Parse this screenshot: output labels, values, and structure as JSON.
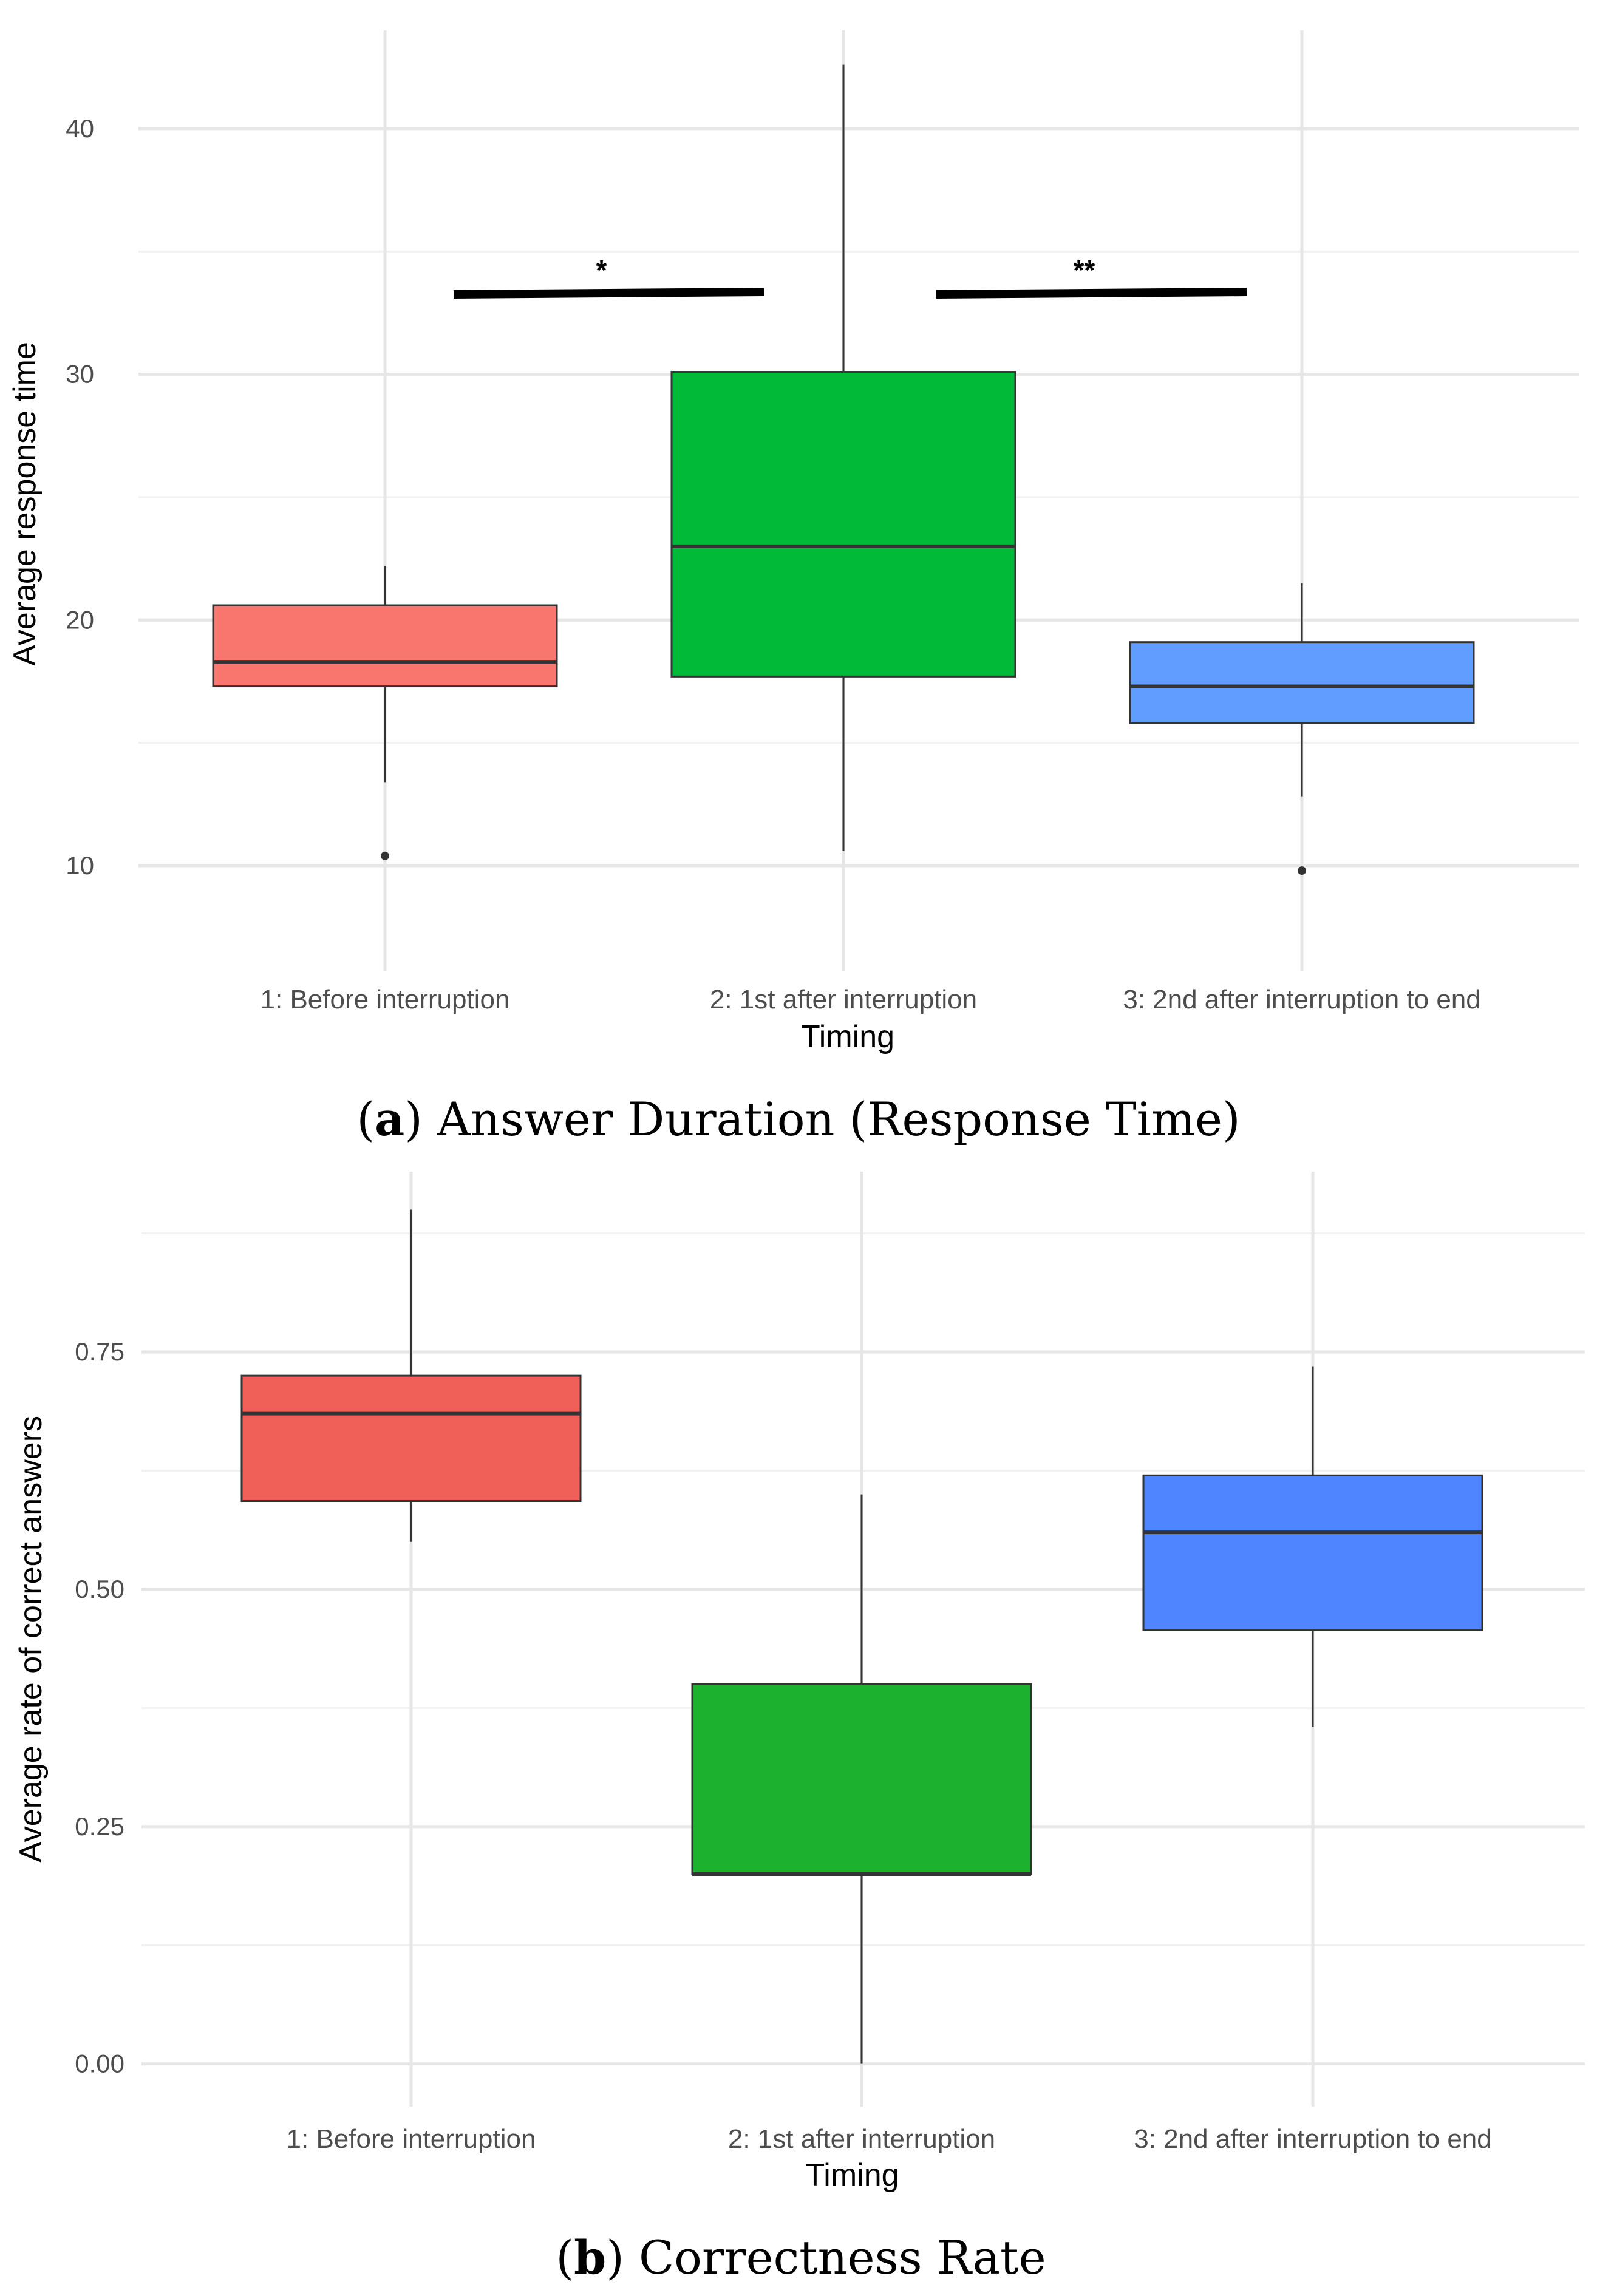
{
  "chart_data": [
    {
      "type": "boxplot",
      "xlabel": "Timing",
      "ylabel": "Average response time",
      "ylim": [
        5.7,
        44
      ],
      "yticks": [
        10,
        20,
        30,
        40
      ],
      "ytick_labels": [
        "10",
        "20",
        "30",
        "40"
      ],
      "grid": true,
      "categories": [
        "1: Before interruption",
        "2: 1st after interruption",
        "3: 2nd after interruption to end"
      ],
      "boxes": [
        {
          "category": "1: Before interruption",
          "fill": "#F8766D",
          "min": 13.4,
          "q1": 17.3,
          "median": 18.3,
          "q3": 20.6,
          "max": 22.2,
          "outliers": [
            10.4
          ]
        },
        {
          "category": "2: 1st after interruption",
          "fill": "#00BA38",
          "min": 10.6,
          "q1": 17.7,
          "median": 23.0,
          "q3": 30.1,
          "max": 42.6,
          "outliers": []
        },
        {
          "category": "3: 2nd after interruption to end",
          "fill": "#619CFF",
          "min": 12.8,
          "q1": 15.8,
          "median": 17.3,
          "q3": 19.1,
          "max": 21.5,
          "outliers": [
            9.8
          ]
        }
      ],
      "significance": [
        {
          "from": 0,
          "to": 1,
          "label": "*",
          "y": 33.3
        },
        {
          "from": 1,
          "to": 2,
          "label": "**",
          "y": 33.3
        }
      ],
      "caption_letter": "a",
      "caption_text": "Answer Duration (Response Time)"
    },
    {
      "type": "boxplot",
      "xlabel": "Timing",
      "ylabel": "Average rate of correct answers",
      "ylim": [
        -0.045,
        0.94
      ],
      "yticks": [
        0.0,
        0.25,
        0.5,
        0.75
      ],
      "ytick_labels": [
        "0.00",
        "0.25",
        "0.50",
        "0.75"
      ],
      "grid": true,
      "categories": [
        "1: Before interruption",
        "2: 1st after interruption",
        "3: 2nd after interruption to end"
      ],
      "boxes": [
        {
          "category": "1: Before interruption",
          "fill": "#F05F58",
          "min": 0.55,
          "q1": 0.593,
          "median": 0.685,
          "q3": 0.725,
          "max": 0.9,
          "outliers": []
        },
        {
          "category": "2: 1st after interruption",
          "fill": "#1CB22E",
          "min": 0.0,
          "q1": 0.2,
          "median": 0.2,
          "q3": 0.4,
          "max": 0.6,
          "outliers": []
        },
        {
          "category": "3: 2nd after interruption to end",
          "fill": "#4F86FF",
          "min": 0.355,
          "q1": 0.457,
          "median": 0.56,
          "q3": 0.62,
          "max": 0.735,
          "outliers": []
        }
      ],
      "significance": [],
      "caption_letter": "b",
      "caption_text": "Correctness Rate"
    }
  ]
}
